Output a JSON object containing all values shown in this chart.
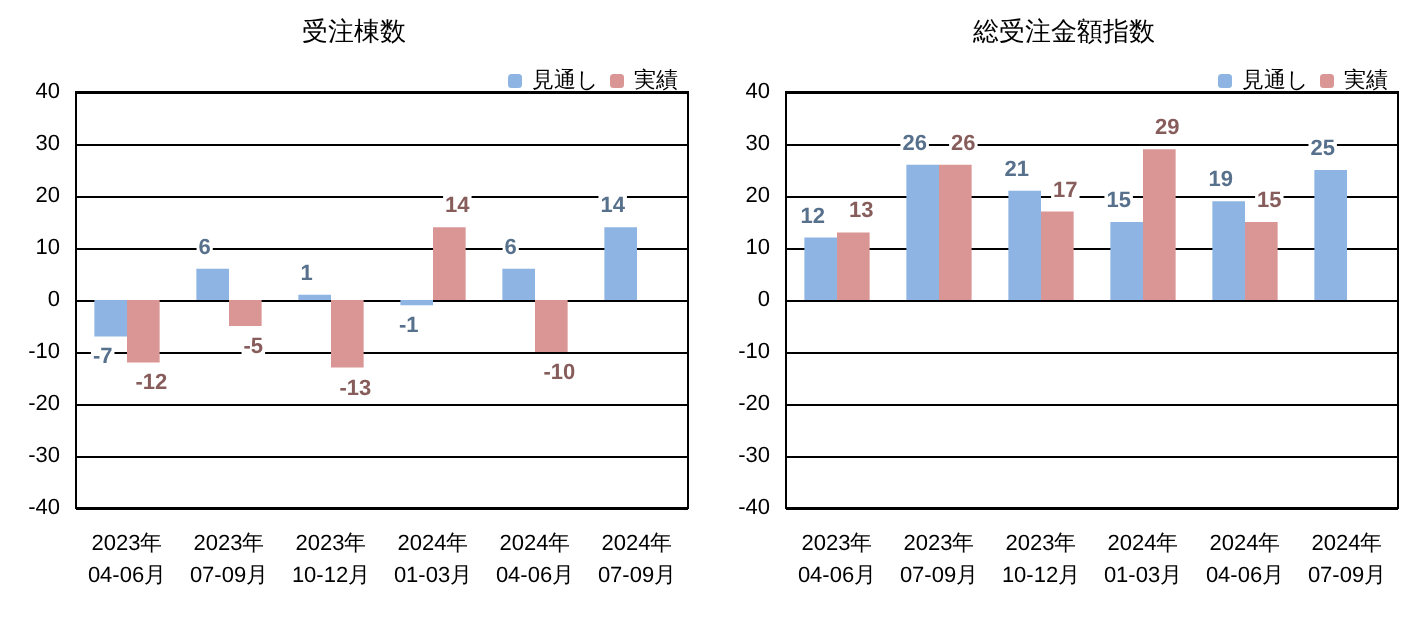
{
  "chart_data": [
    {
      "type": "bar",
      "title": "受注棟数",
      "categories": [
        "2023年\n04-06月",
        "2023年\n07-09月",
        "2023年\n10-12月",
        "2024年\n01-03月",
        "2024年\n04-06月",
        "2024年\n07-09月"
      ],
      "series": [
        {
          "name": "見通し",
          "color": "#8db4e2",
          "values": [
            -7,
            6,
            1,
            -1,
            6,
            14
          ]
        },
        {
          "name": "実績",
          "color": "#da9694",
          "values": [
            -12,
            -5,
            -13,
            14,
            -10,
            null
          ]
        }
      ],
      "ylim": [
        -40,
        40
      ],
      "yticks": [
        -40,
        -30,
        -20,
        -10,
        0,
        10,
        20,
        30,
        40
      ],
      "grid": "y",
      "legend": "top right",
      "data_labels": true
    },
    {
      "type": "bar",
      "title": "総受注金額指数",
      "categories": [
        "2023年\n04-06月",
        "2023年\n07-09月",
        "2023年\n10-12月",
        "2024年\n01-03月",
        "2024年\n04-06月",
        "2024年\n07-09月"
      ],
      "series": [
        {
          "name": "見通し",
          "color": "#8db4e2",
          "values": [
            12,
            26,
            21,
            15,
            19,
            25
          ]
        },
        {
          "name": "実績",
          "color": "#da9694",
          "values": [
            13,
            26,
            17,
            29,
            15,
            null
          ]
        }
      ],
      "ylim": [
        -40,
        40
      ],
      "yticks": [
        -40,
        -30,
        -20,
        -10,
        0,
        10,
        20,
        30,
        40
      ],
      "grid": "y",
      "legend": "top right",
      "data_labels": true
    }
  ]
}
